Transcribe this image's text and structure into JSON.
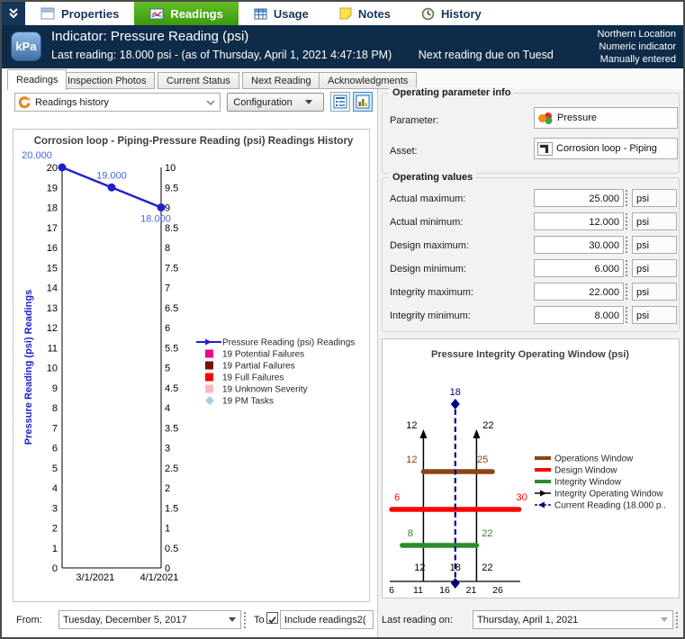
{
  "toolbar": {
    "tabs": [
      {
        "label": "Properties"
      },
      {
        "label": "Readings",
        "active": true
      },
      {
        "label": "Usage"
      },
      {
        "label": "Notes"
      },
      {
        "label": "History"
      }
    ]
  },
  "header": {
    "badge": "kPa",
    "title": "Indicator: Pressure Reading (psi)",
    "last_reading_line": "Last reading: 18.000 psi -  (as of Thursday, April 1, 2021 4:47:18 PM)",
    "next_reading": "Next reading due on Tuesd",
    "meta": [
      "Northern Location",
      "Numeric indicator",
      "Manually entered"
    ]
  },
  "subtabs": [
    {
      "label": "Readings",
      "active": true
    },
    {
      "label": "Inspection Photos"
    },
    {
      "label": "Current Status"
    },
    {
      "label": "Next Reading"
    },
    {
      "label": "Acknowledgments"
    }
  ],
  "left_toolbar": {
    "view_combo": "Readings history",
    "configuration_button": "Configuration"
  },
  "operating_parameter_info": {
    "title": "Operating parameter info",
    "parameter_label": "Parameter:",
    "parameter_value": "Pressure",
    "asset_label": "Asset:",
    "asset_value": "Corrosion loop - Piping"
  },
  "operating_values": {
    "title": "Operating values",
    "unit": "psi",
    "rows": [
      {
        "label": "Actual maximum:",
        "value": "25.000"
      },
      {
        "label": "Actual minimum:",
        "value": "12.000"
      },
      {
        "label": "Design maximum:",
        "value": "30.000"
      },
      {
        "label": "Design minimum:",
        "value": "6.000"
      },
      {
        "label": "Integrity maximum:",
        "value": "22.000"
      },
      {
        "label": "Integrity minimum:",
        "value": "8.000"
      }
    ]
  },
  "footer": {
    "from_label": "From:",
    "from_value": "Tuesday, December 5, 2017",
    "to_label": "To",
    "to_checked": true,
    "include_text": "Include readings2(",
    "last_reading_label": "Last reading on:",
    "last_reading_value": "Thursday, April 1, 2021"
  },
  "chart_data": [
    {
      "type": "line",
      "title": "Corrosion loop - Piping-Pressure Reading (psi) Readings History",
      "ylabel": "Pressure Reading (psi) Readings",
      "left_axis": {
        "min": 0,
        "max": 20,
        "step": 1
      },
      "right_axis": {
        "min": 0,
        "max": 10,
        "step": 0.5
      },
      "x_tick_labels": [
        "3/1/2021",
        "4/1/2021"
      ],
      "series": [
        {
          "name": "Pressure Reading (psi) Readings",
          "color": "#2020cc",
          "label_color": "#4169e1",
          "points": [
            {
              "x": 0,
              "y": 20,
              "label": "20.000"
            },
            {
              "x": 0.5,
              "y": 19,
              "label": "19.000"
            },
            {
              "x": 1,
              "y": 18,
              "label": "18.000"
            }
          ]
        }
      ],
      "legend": [
        {
          "label": "Pressure Reading (psi) Readings",
          "color": "#2020cc",
          "marker": "line"
        },
        {
          "label": "19 Potential Failures",
          "color": "#ec008c",
          "marker": "square"
        },
        {
          "label": "19 Partial Failures",
          "color": "#7b0c0c",
          "marker": "square"
        },
        {
          "label": "19 Full Failures",
          "color": "#ff0000",
          "marker": "square"
        },
        {
          "label": "19 Unknown Severity",
          "color": "#f8b8c8",
          "marker": "square"
        },
        {
          "label": "19 PM Tasks",
          "color": "#a9cbe0",
          "marker": "diamond"
        }
      ]
    },
    {
      "type": "operating-window",
      "title": "Pressure Integrity Operating Window (psi)",
      "x_ticks": [
        6,
        11,
        16,
        21,
        26
      ],
      "current_reading": {
        "value": 18,
        "color": "#00008b"
      },
      "integrity_operating_window": {
        "from": 12,
        "to": 22,
        "color": "#000000"
      },
      "bars": [
        {
          "name": "Operations Window",
          "from": 12,
          "to": 25,
          "color": "#8b4513"
        },
        {
          "name": "Design Window",
          "from": 6,
          "to": 30,
          "color": "#ff0000"
        },
        {
          "name": "Integrity Window",
          "from": 8,
          "to": 22,
          "color": "#2e8b2e"
        }
      ],
      "legend": [
        {
          "label": "Operations Window",
          "color": "#8b4513",
          "marker": "thickline"
        },
        {
          "label": "Design Window",
          "color": "#ff0000",
          "marker": "thickline"
        },
        {
          "label": "Integrity Window",
          "color": "#2e8b2e",
          "marker": "thickline"
        },
        {
          "label": "Integrity Operating Window",
          "color": "#000000",
          "marker": "arrowline"
        },
        {
          "label": "Current Reading (18.000 p..",
          "color": "#00008b",
          "marker": "dashline"
        }
      ]
    }
  ]
}
